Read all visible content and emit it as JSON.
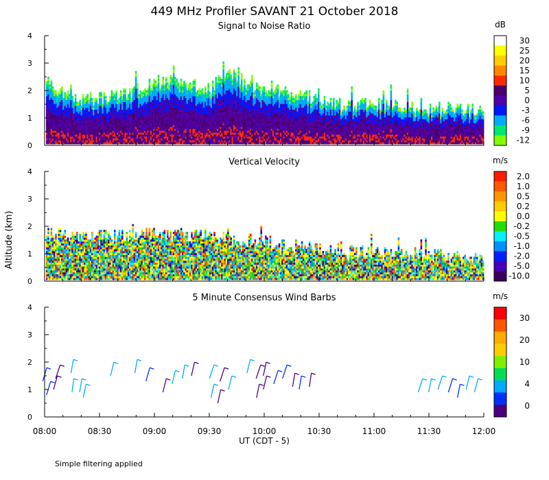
{
  "title": "449 MHz Profiler SAVANT 21 October 2018",
  "ylabel": "Altitude (km)",
  "xlabel": "UT  (CDT - 5)",
  "footnote": "Simple filtering applied",
  "x_ticks": [
    "08:00",
    "08:30",
    "09:00",
    "09:30",
    "10:00",
    "10:30",
    "11:00",
    "11:30",
    "12:00"
  ],
  "y_ticks": [
    "0",
    "1",
    "2",
    "3",
    "4"
  ],
  "chart_data": [
    {
      "type": "heatmap",
      "title": "Signal to Noise Ratio",
      "units": "dB",
      "xlim": [
        "08:00",
        "12:00"
      ],
      "ylim": [
        0,
        4
      ],
      "colorbar": {
        "labels": [
          "30",
          "25",
          "20",
          "15",
          "10",
          "5",
          "0",
          "-3",
          "-6",
          "-9",
          "-12"
        ],
        "colors": [
          "#ffffff",
          "#ffff00",
          "#ffcc00",
          "#ff8800",
          "#ff2a00",
          "#4b0070",
          "#5000a8",
          "#0018ff",
          "#00aaff",
          "#00e870",
          "#80ff00"
        ]
      },
      "echo_top_km": [
        {
          "t": "08:00",
          "top": 2.3
        },
        {
          "t": "08:15",
          "top": 1.6
        },
        {
          "t": "08:30",
          "top": 1.7
        },
        {
          "t": "08:45",
          "top": 1.9
        },
        {
          "t": "09:00",
          "top": 2.3
        },
        {
          "t": "09:15",
          "top": 2.3
        },
        {
          "t": "09:30",
          "top": 2.0
        },
        {
          "t": "09:40",
          "top": 2.6
        },
        {
          "t": "10:00",
          "top": 1.9
        },
        {
          "t": "10:15",
          "top": 1.9
        },
        {
          "t": "10:30",
          "top": 1.6
        },
        {
          "t": "10:45",
          "top": 1.4
        },
        {
          "t": "11:00",
          "top": 1.5
        },
        {
          "t": "11:15",
          "top": 1.4
        },
        {
          "t": "11:30",
          "top": 1.3
        },
        {
          "t": "11:45",
          "top": 1.3
        },
        {
          "t": "12:00",
          "top": 1.2
        }
      ]
    },
    {
      "type": "heatmap",
      "title": "Vertical Velocity",
      "units": "m/s",
      "xlim": [
        "08:00",
        "12:00"
      ],
      "ylim": [
        0,
        4
      ],
      "colorbar": {
        "labels": [
          "2.0",
          "1.0",
          "0.5",
          "0.2",
          "0.0",
          "-0.2",
          "-0.5",
          "-1.0",
          "-2.0",
          "-5.0",
          "-10.0"
        ],
        "colors": [
          "#ff1a00",
          "#ff5a00",
          "#ff9500",
          "#ffcc00",
          "#ffff00",
          "#22dd00",
          "#00f0ff",
          "#0090ff",
          "#0020ff",
          "#4a00b8",
          "#3a0060"
        ]
      },
      "echo_top_km": [
        {
          "t": "08:00",
          "top": 1.7
        },
        {
          "t": "08:30",
          "top": 1.6
        },
        {
          "t": "09:00",
          "top": 1.7
        },
        {
          "t": "09:30",
          "top": 1.6
        },
        {
          "t": "10:00",
          "top": 1.4
        },
        {
          "t": "10:30",
          "top": 1.1
        },
        {
          "t": "11:00",
          "top": 1.0
        },
        {
          "t": "11:30",
          "top": 0.9
        },
        {
          "t": "12:00",
          "top": 0.8
        }
      ]
    },
    {
      "type": "scatter",
      "title": "5 Minute Consensus Wind Barbs",
      "units": "m/s",
      "xlim": [
        "08:00",
        "12:00"
      ],
      "ylim": [
        0,
        4
      ],
      "colorbar": {
        "labels": [
          "30",
          "20",
          "10",
          "4",
          "0"
        ],
        "colors": [
          "#ff0000",
          "#ff5500",
          "#ffaa00",
          "#ffcc00",
          "#80f000",
          "#00dd55",
          "#00aaff",
          "#0030ff",
          "#4b0080"
        ]
      },
      "points": [
        {
          "t": "08:00",
          "alt": 0.8,
          "speed": 3
        },
        {
          "t": "08:00",
          "alt": 1.3,
          "speed": 6
        },
        {
          "t": "08:05",
          "alt": 1.4,
          "speed": 1
        },
        {
          "t": "08:05",
          "alt": 1.0,
          "speed": 1
        },
        {
          "t": "08:15",
          "alt": 1.6,
          "speed": 9
        },
        {
          "t": "08:15",
          "alt": 0.9,
          "speed": 9
        },
        {
          "t": "08:20",
          "alt": 0.9,
          "speed": 9
        },
        {
          "t": "08:20",
          "alt": 0.7,
          "speed": 9
        },
        {
          "t": "08:35",
          "alt": 1.5,
          "speed": 9
        },
        {
          "t": "08:50",
          "alt": 1.6,
          "speed": 7
        },
        {
          "t": "08:55",
          "alt": 1.3,
          "speed": 5
        },
        {
          "t": "09:05",
          "alt": 0.9,
          "speed": 2
        },
        {
          "t": "09:10",
          "alt": 1.2,
          "speed": 8
        },
        {
          "t": "09:15",
          "alt": 1.4,
          "speed": 7
        },
        {
          "t": "09:20",
          "alt": 1.5,
          "speed": 2
        },
        {
          "t": "09:30",
          "alt": 1.4,
          "speed": 8
        },
        {
          "t": "09:30",
          "alt": 0.7,
          "speed": 7
        },
        {
          "t": "09:35",
          "alt": 1.3,
          "speed": 2
        },
        {
          "t": "09:35",
          "alt": 0.5,
          "speed": 1
        },
        {
          "t": "09:40",
          "alt": 1.0,
          "speed": 9
        },
        {
          "t": "09:50",
          "alt": 1.6,
          "speed": 9
        },
        {
          "t": "09:55",
          "alt": 1.4,
          "speed": 1
        },
        {
          "t": "09:55",
          "alt": 0.7,
          "speed": 1
        },
        {
          "t": "10:00",
          "alt": 1.5,
          "speed": 1
        },
        {
          "t": "10:00",
          "alt": 1.0,
          "speed": 1
        },
        {
          "t": "10:05",
          "alt": 1.2,
          "speed": 5
        },
        {
          "t": "10:10",
          "alt": 1.4,
          "speed": 5
        },
        {
          "t": "10:15",
          "alt": 1.1,
          "speed": 2
        },
        {
          "t": "10:20",
          "alt": 1.0,
          "speed": 3
        },
        {
          "t": "10:25",
          "alt": 1.1,
          "speed": 1
        },
        {
          "t": "11:25",
          "alt": 0.9,
          "speed": 7
        },
        {
          "t": "11:30",
          "alt": 0.9,
          "speed": 7
        },
        {
          "t": "11:35",
          "alt": 1.0,
          "speed": 7
        },
        {
          "t": "11:40",
          "alt": 0.9,
          "speed": 6
        },
        {
          "t": "11:45",
          "alt": 0.7,
          "speed": 3
        },
        {
          "t": "11:50",
          "alt": 1.0,
          "speed": 7
        },
        {
          "t": "11:55",
          "alt": 0.9,
          "speed": 7
        }
      ]
    }
  ]
}
